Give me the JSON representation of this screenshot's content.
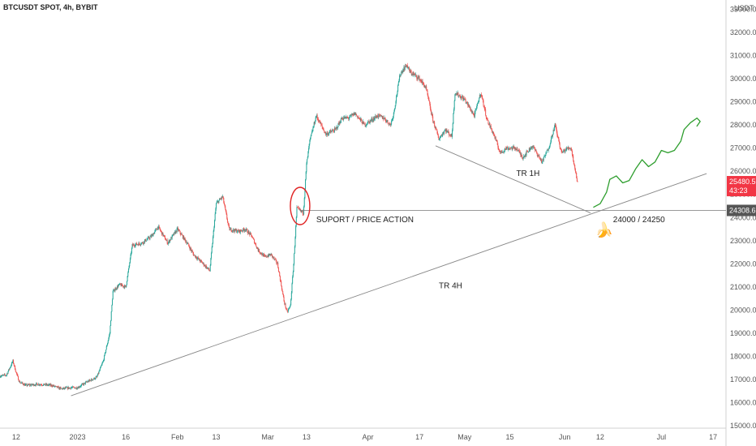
{
  "header": {
    "symbol": "BTCUSDT SPOT, 4h, BYBIT"
  },
  "chart_data": {
    "type": "candlestick",
    "title": "BTCUSDT SPOT, 4h, BYBIT",
    "currency": "USDT",
    "y_ticks": [
      15000,
      16000,
      17000,
      18000,
      19000,
      20000,
      21000,
      22000,
      23000,
      24000,
      25000,
      26000,
      27000,
      28000,
      29000,
      30000,
      31000,
      32000,
      33000
    ],
    "y_tick_labels": [
      "15000.00",
      "16000.00",
      "17000.00",
      "18000.00",
      "19000.00",
      "20000.00",
      "21000.00",
      "22000.00",
      "23000.00",
      "24000.00",
      "25000.00",
      "26000.00",
      "27000.00",
      "28000.00",
      "29000.00",
      "30000.00",
      "31000.00",
      "32000.00",
      "33000.00"
    ],
    "ylim": [
      14900,
      33400
    ],
    "x_ticks": [
      {
        "label": "12",
        "day": -19
      },
      {
        "label": "2023",
        "day": 0
      },
      {
        "label": "16",
        "day": 15
      },
      {
        "label": "Feb",
        "day": 31
      },
      {
        "label": "13",
        "day": 43
      },
      {
        "label": "Mar",
        "day": 59
      },
      {
        "label": "13",
        "day": 71
      },
      {
        "label": "Apr",
        "day": 90
      },
      {
        "label": "17",
        "day": 106
      },
      {
        "label": "May",
        "day": 120
      },
      {
        "label": "15",
        "day": 134
      },
      {
        "label": "Jun",
        "day": 151
      },
      {
        "label": "12",
        "day": 162
      },
      {
        "label": "Jul",
        "day": 181
      },
      {
        "label": "17",
        "day": 197
      }
    ],
    "x_day_range": [
      -24,
      201
    ],
    "price_path": [
      [
        -24,
        17150
      ],
      [
        -22,
        17200
      ],
      [
        -20,
        17800
      ],
      [
        -19,
        17300
      ],
      [
        -18,
        16900
      ],
      [
        -16,
        16750
      ],
      [
        -12,
        16800
      ],
      [
        -8,
        16750
      ],
      [
        -5,
        16600
      ],
      [
        -2,
        16650
      ],
      [
        0,
        16650
      ],
      [
        3,
        16900
      ],
      [
        6,
        17100
      ],
      [
        8,
        17800
      ],
      [
        10,
        19000
      ],
      [
        11,
        20800
      ],
      [
        13,
        21100
      ],
      [
        15,
        21000
      ],
      [
        17,
        22800
      ],
      [
        20,
        22900
      ],
      [
        23,
        23200
      ],
      [
        25,
        23600
      ],
      [
        28,
        22900
      ],
      [
        31,
        23500
      ],
      [
        34,
        22900
      ],
      [
        36,
        22400
      ],
      [
        39,
        22000
      ],
      [
        41,
        21700
      ],
      [
        43,
        24600
      ],
      [
        45,
        24900
      ],
      [
        47,
        23500
      ],
      [
        50,
        23400
      ],
      [
        52,
        23500
      ],
      [
        54,
        23200
      ],
      [
        56,
        22600
      ],
      [
        58,
        22300
      ],
      [
        60,
        22400
      ],
      [
        62,
        22000
      ],
      [
        64,
        20400
      ],
      [
        65,
        19900
      ],
      [
        66,
        20200
      ],
      [
        67,
        22000
      ],
      [
        68,
        24400
      ],
      [
        70,
        24200
      ],
      [
        71,
        26300
      ],
      [
        72,
        27300
      ],
      [
        74,
        28400
      ],
      [
        77,
        27600
      ],
      [
        80,
        27800
      ],
      [
        82,
        28300
      ],
      [
        84,
        28300
      ],
      [
        86,
        28500
      ],
      [
        89,
        28000
      ],
      [
        91,
        28200
      ],
      [
        93,
        28400
      ],
      [
        95,
        28300
      ],
      [
        97,
        28000
      ],
      [
        98,
        28500
      ],
      [
        100,
        30200
      ],
      [
        102,
        30600
      ],
      [
        103,
        30300
      ],
      [
        106,
        30000
      ],
      [
        108,
        29600
      ],
      [
        110,
        28300
      ],
      [
        112,
        27400
      ],
      [
        114,
        27800
      ],
      [
        116,
        27500
      ],
      [
        117,
        29400
      ],
      [
        120,
        29100
      ],
      [
        123,
        28400
      ],
      [
        125,
        29400
      ],
      [
        127,
        28200
      ],
      [
        129,
        27600
      ],
      [
        131,
        26800
      ],
      [
        133,
        27000
      ],
      [
        136,
        27000
      ],
      [
        138,
        26600
      ],
      [
        141,
        27100
      ],
      [
        144,
        26400
      ],
      [
        146,
        27000
      ],
      [
        148,
        28000
      ],
      [
        150,
        26800
      ],
      [
        152,
        27000
      ],
      [
        153,
        27000
      ],
      [
        155,
        25500
      ]
    ],
    "last_price": {
      "value": 25480.59,
      "label": "25480.59",
      "countdown": "43:23"
    },
    "support_level": {
      "value": 24308.61,
      "label": "24308.61"
    },
    "trendlines": [
      {
        "name": "TR 4H",
        "from": [
          -2,
          16300
        ],
        "to": [
          195,
          25900
        ]
      },
      {
        "name": "TR 1H",
        "from": [
          111,
          27100
        ],
        "to": [
          159,
          24200
        ]
      }
    ],
    "projection": [
      [
        160,
        24450
      ],
      [
        162,
        24600
      ],
      [
        164,
        25100
      ],
      [
        165,
        25650
      ],
      [
        167,
        25800
      ],
      [
        169,
        25500
      ],
      [
        171,
        25600
      ],
      [
        173,
        26100
      ],
      [
        175,
        26500
      ],
      [
        177,
        26200
      ],
      [
        179,
        26400
      ],
      [
        181,
        26900
      ],
      [
        183,
        26800
      ],
      [
        185,
        26900
      ],
      [
        187,
        27300
      ],
      [
        188,
        27800
      ],
      [
        190,
        28100
      ],
      [
        192,
        28300
      ],
      [
        193,
        28150
      ],
      [
        192,
        27950
      ]
    ],
    "annotations": [
      {
        "text": "SUPORT / PRICE ACTION",
        "day": 74,
        "value": 23800
      },
      {
        "text": "TR 1H",
        "day": 136,
        "value": 25800
      },
      {
        "text": "TR 4H",
        "day": 112,
        "value": 20950
      },
      {
        "text": "24000 / 24250",
        "day": 166,
        "value": 23800
      }
    ],
    "highlight_circle": {
      "day": 69,
      "value": 24500
    },
    "banana_emoji": "🍌",
    "colors": {
      "up": "#26a69a",
      "down": "#ef5350",
      "trend": "#888888",
      "projection": "#2e9e2e",
      "circle": "#e02424",
      "price_tag": "#f23645",
      "support_tag": "#555555"
    }
  }
}
